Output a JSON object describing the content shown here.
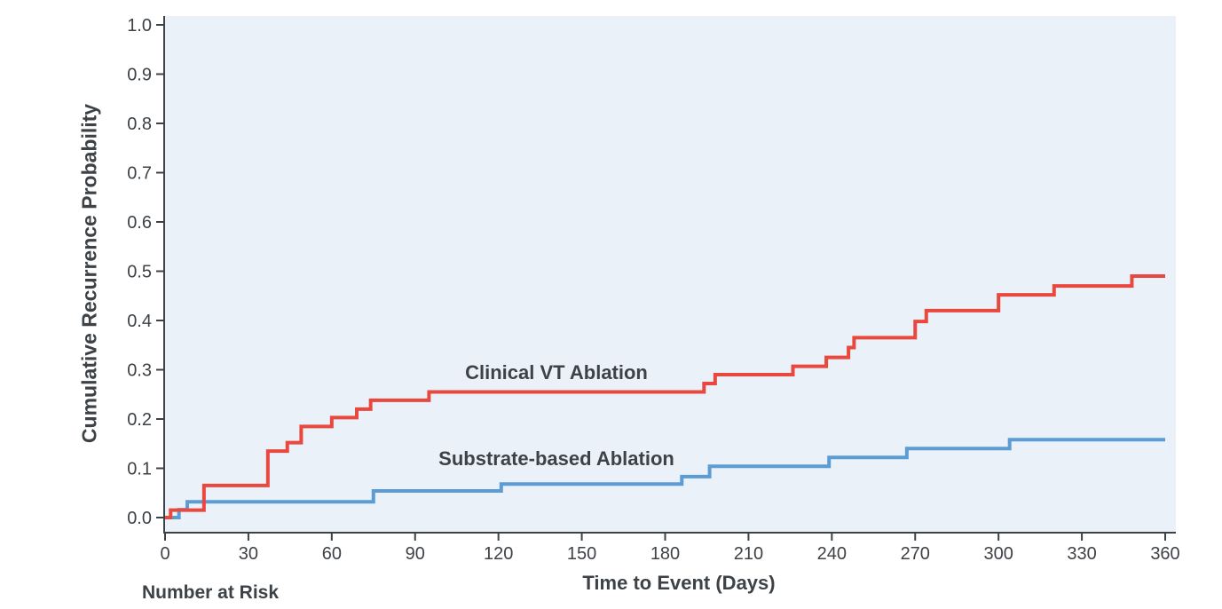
{
  "figure": {
    "background": "#ffffff",
    "panel_background": "#eaf1f8",
    "axis_color": "#3c4146",
    "text_color": "#3d4247"
  },
  "chart_data": {
    "type": "line",
    "subtype": "kaplan-meier-step",
    "title": "",
    "xlabel": "Time to Event (Days)",
    "ylabel": "Cumulative Recurrence Probability",
    "footer": "Number at Risk",
    "xlim": [
      0,
      360
    ],
    "ylim": [
      0.0,
      1.0
    ],
    "x_ticks": [
      0,
      30,
      60,
      90,
      120,
      150,
      180,
      210,
      240,
      270,
      300,
      330,
      360
    ],
    "y_ticks": [
      0.0,
      0.1,
      0.2,
      0.3,
      0.4,
      0.5,
      0.6,
      0.7,
      0.8,
      0.9,
      1.0
    ],
    "grid": false,
    "legend_position": "inline-annotations",
    "series": [
      {
        "name": "Clinical VT Ablation",
        "color": "#e8483e",
        "start": [
          0,
          0.0
        ],
        "steps": [
          [
            2,
            0.015
          ],
          [
            14,
            0.065
          ],
          [
            37,
            0.135
          ],
          [
            44,
            0.152
          ],
          [
            49,
            0.185
          ],
          [
            60,
            0.203
          ],
          [
            69,
            0.22
          ],
          [
            74,
            0.238
          ],
          [
            95,
            0.255
          ],
          [
            194,
            0.272
          ],
          [
            198,
            0.29
          ],
          [
            226,
            0.307
          ],
          [
            238,
            0.325
          ],
          [
            246,
            0.345
          ],
          [
            248,
            0.365
          ],
          [
            270,
            0.398
          ],
          [
            274,
            0.42
          ],
          [
            300,
            0.452
          ],
          [
            320,
            0.47
          ],
          [
            348,
            0.49
          ]
        ],
        "end": [
          360,
          0.49
        ],
        "label_anchor": {
          "day": 141,
          "probability": 0.294
        }
      },
      {
        "name": "Substrate-based Ablation",
        "color": "#5b9cd4",
        "start": [
          0,
          0.0
        ],
        "steps": [
          [
            5,
            0.016
          ],
          [
            8,
            0.032
          ],
          [
            75,
            0.054
          ],
          [
            121,
            0.068
          ],
          [
            186,
            0.083
          ],
          [
            196,
            0.104
          ],
          [
            239,
            0.122
          ],
          [
            267,
            0.14
          ],
          [
            304,
            0.158
          ]
        ],
        "end": [
          360,
          0.158
        ],
        "label_anchor": {
          "day": 141,
          "probability": 0.119
        }
      }
    ]
  }
}
